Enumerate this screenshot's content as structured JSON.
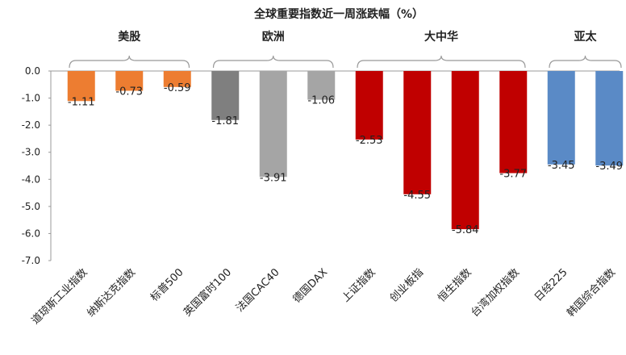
{
  "chart_data": {
    "type": "bar",
    "title": "全球重要指数近一周涨跌幅（%）",
    "ylim": [
      -7.0,
      0.0
    ],
    "yticks": [
      "0.0",
      "-1.0",
      "-2.0",
      "-3.0",
      "-4.0",
      "-5.0",
      "-6.0",
      "-7.0"
    ],
    "categories": [
      "道琼斯工业指数",
      "纳斯达克指数",
      "标普500",
      "英国富时100",
      "法国CAC40",
      "德国DAX",
      "上证指数",
      "创业板指",
      "恒生指数",
      "台湾加权指数",
      "日经225",
      "韩国综合指数"
    ],
    "values": [
      -1.11,
      -0.73,
      -0.59,
      -1.81,
      -3.91,
      -1.06,
      -2.53,
      -4.55,
      -5.84,
      -3.77,
      -3.45,
      -3.49
    ],
    "labels": [
      "-1.11",
      "-0.73",
      "-0.59",
      "-1.81",
      "-3.91",
      "-1.06",
      "-2.53",
      "-4.55",
      "-5.84",
      "-3.77",
      "-3.45",
      "-3.49"
    ],
    "bar_colors": [
      "#ed7d31",
      "#ed7d31",
      "#ed7d31",
      "#7f7f7f",
      "#a5a5a5",
      "#a5a5a5",
      "#c00000",
      "#c00000",
      "#c00000",
      "#c00000",
      "#5a8ac6",
      "#5a8ac6"
    ],
    "groups": [
      {
        "name": "美股",
        "start": 0,
        "end": 2
      },
      {
        "name": "欧洲",
        "start": 3,
        "end": 5
      },
      {
        "name": "大中华",
        "start": 6,
        "end": 9
      },
      {
        "name": "亚太",
        "start": 10,
        "end": 11
      }
    ],
    "grid": false
  }
}
